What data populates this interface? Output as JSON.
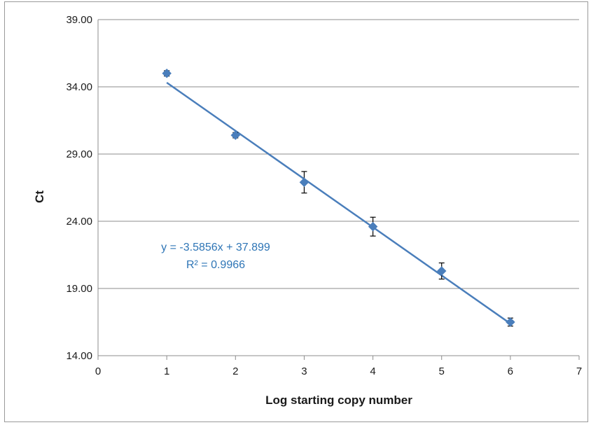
{
  "chart_data": {
    "type": "scatter",
    "title": "",
    "xlabel": "Log starting copy number",
    "ylabel": "Ct",
    "xlim": [
      0,
      7
    ],
    "ylim": [
      14,
      39
    ],
    "x_ticks": [
      "0",
      "1",
      "2",
      "3",
      "4",
      "5",
      "6",
      "7"
    ],
    "y_ticks": [
      "14.00",
      "19.00",
      "24.00",
      "29.00",
      "34.00",
      "39.00"
    ],
    "grid": "horizontal",
    "legend": "none",
    "series": [
      {
        "x": [
          1,
          2,
          3,
          4,
          5,
          6
        ],
        "y": [
          35.0,
          30.4,
          26.9,
          23.6,
          20.3,
          16.5
        ],
        "error": [
          0.2,
          0.2,
          0.8,
          0.7,
          0.6,
          0.3
        ],
        "color": "#4a7ebb",
        "marker": "diamond"
      }
    ],
    "trendline": {
      "slope": -3.5856,
      "intercept": 37.899,
      "x_range": [
        1,
        6
      ],
      "color": "#4a7ebb",
      "equation_label": "y = -3.5856x + 37.899",
      "r2_label": "R² = 0.9966"
    }
  }
}
